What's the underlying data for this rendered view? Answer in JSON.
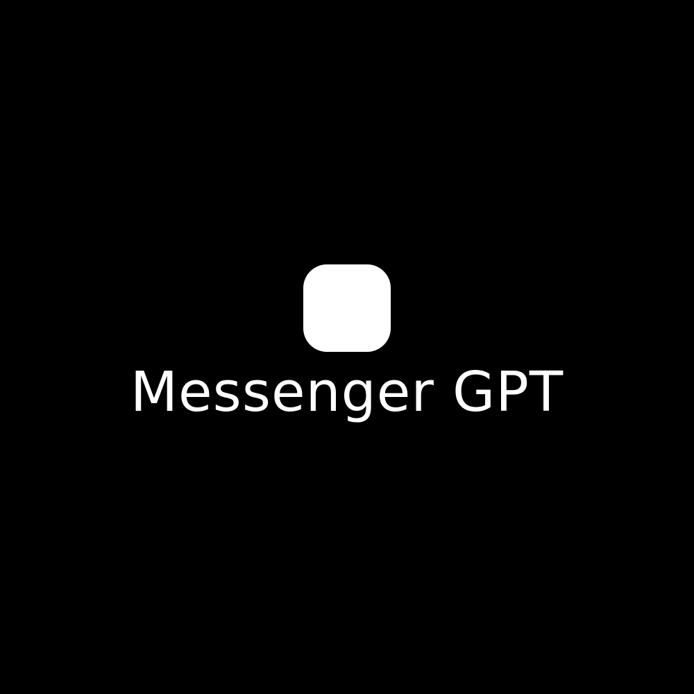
{
  "splash": {
    "icon": "app-icon-rounded-square",
    "title": "Messenger GPT"
  },
  "colors": {
    "background": "#000000",
    "foreground": "#ffffff"
  }
}
